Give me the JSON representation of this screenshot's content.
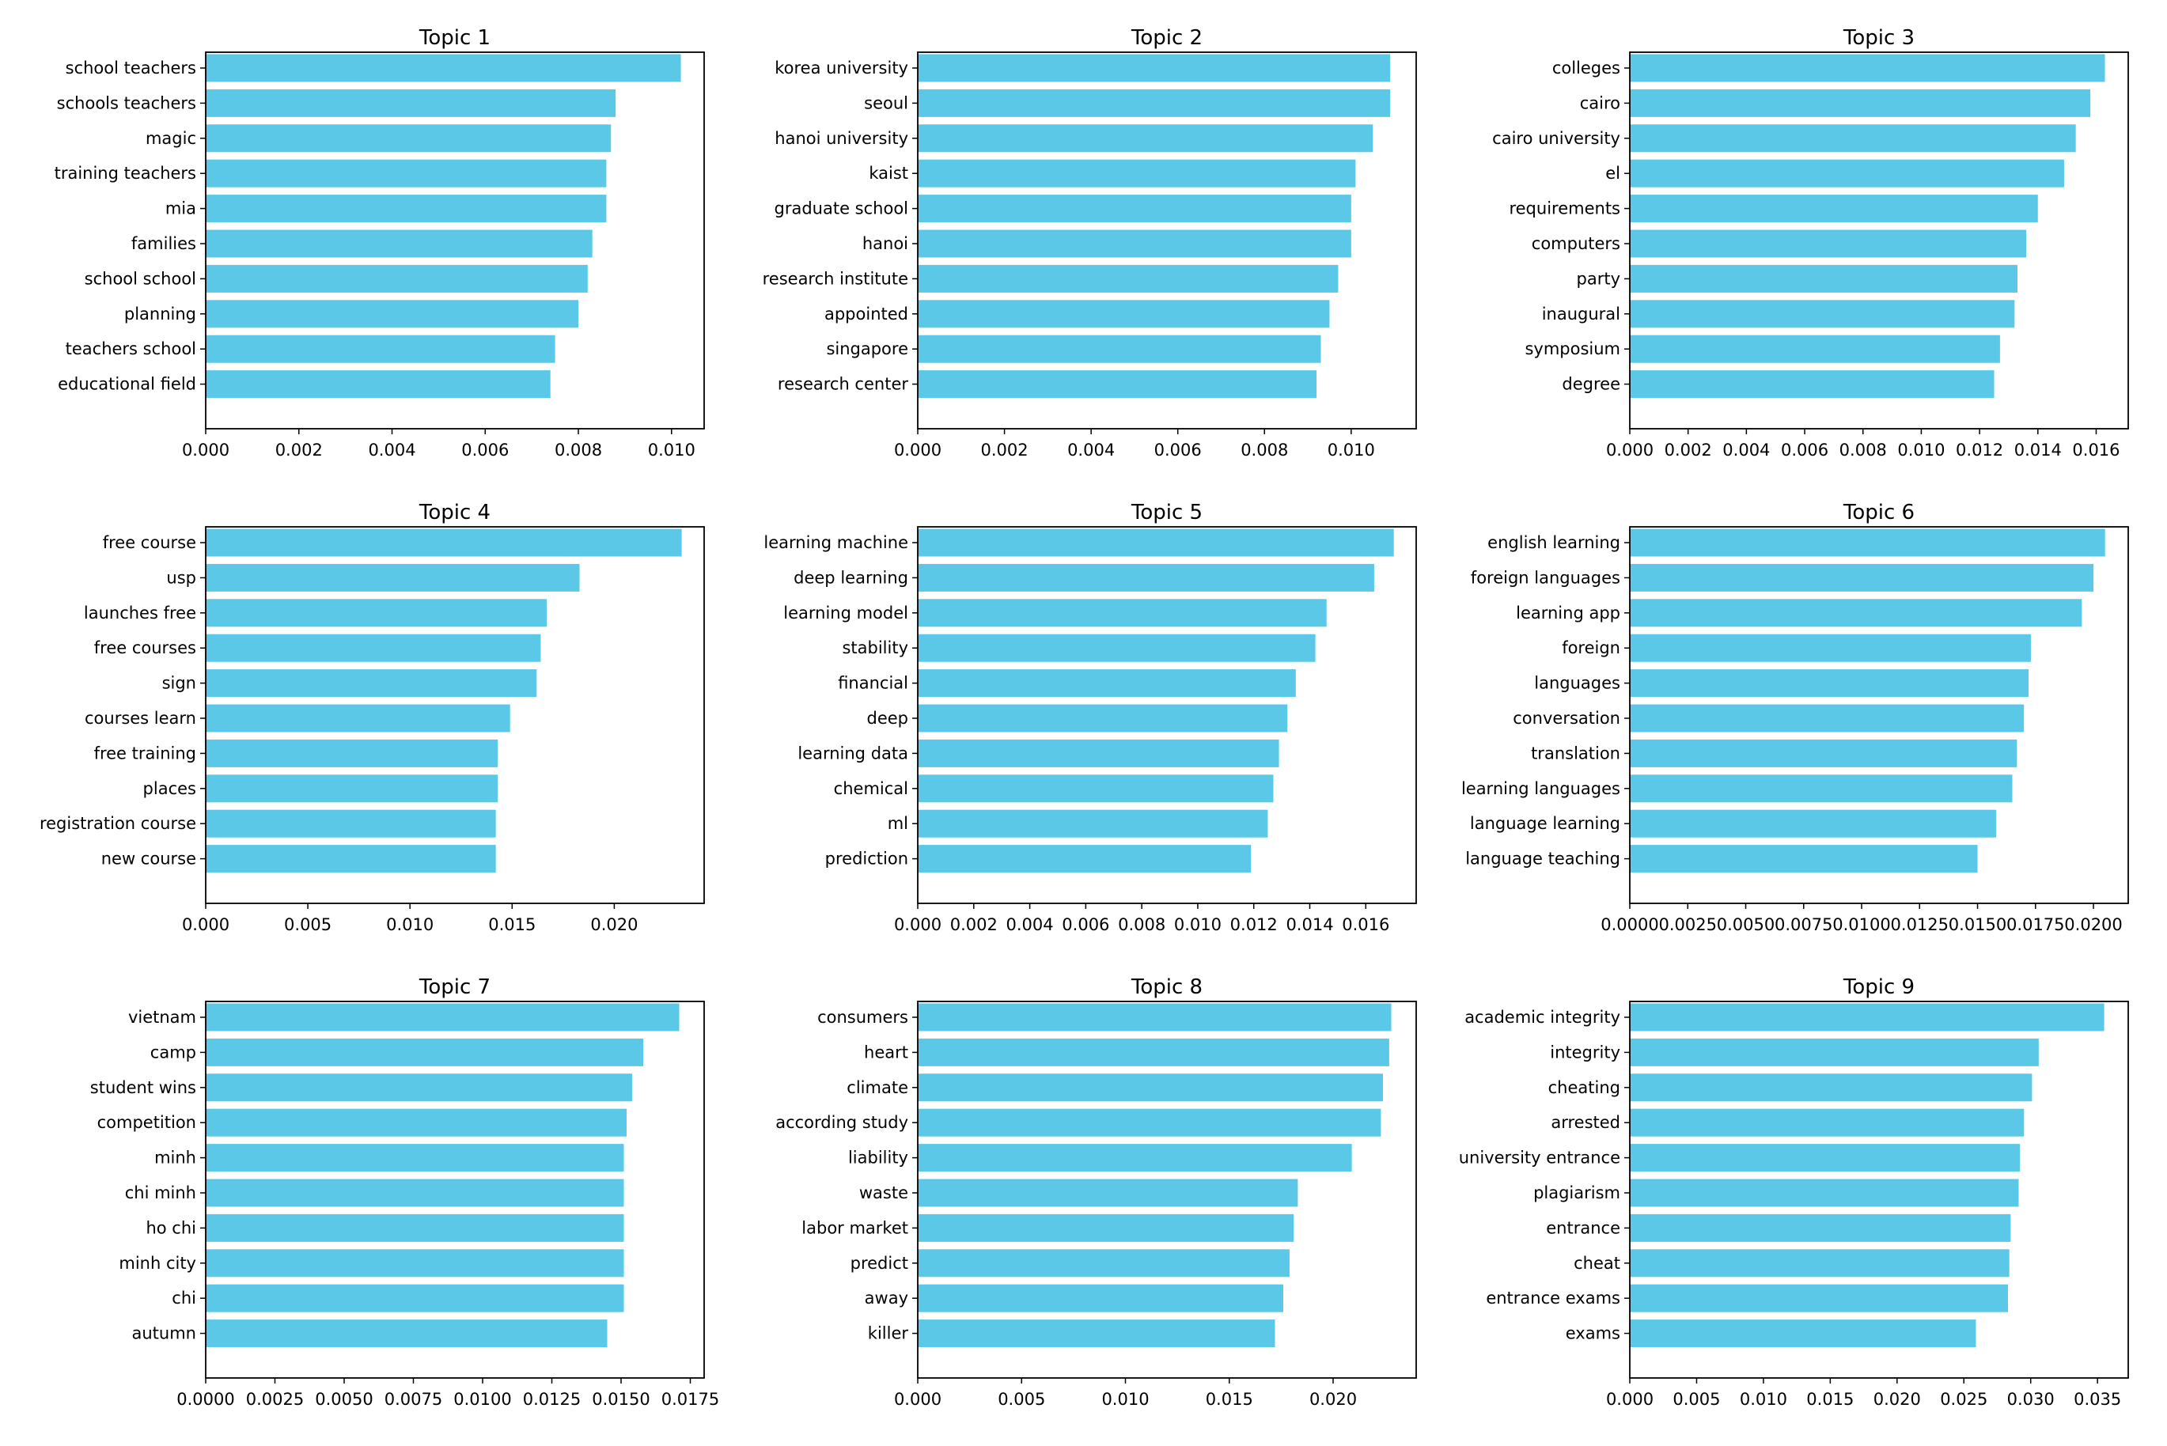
{
  "figure": {
    "bar_color": "#5bc8e8",
    "frame_color": "#000000"
  },
  "chart_data": [
    {
      "type": "bar",
      "orientation": "horizontal",
      "title": "Topic 1",
      "categories": [
        "school teachers",
        "schools teachers",
        "magic",
        "training teachers",
        "mia",
        "families",
        "school school",
        "planning",
        "teachers school",
        "educational field"
      ],
      "values": [
        0.0102,
        0.0088,
        0.0087,
        0.0086,
        0.0086,
        0.0083,
        0.0082,
        0.008,
        0.0075,
        0.0074
      ],
      "xlim": [
        0,
        0.0107
      ],
      "xticks": [
        0,
        0.002,
        0.004,
        0.006,
        0.008,
        0.01
      ],
      "xtick_labels": [
        "0.000",
        "0.002",
        "0.004",
        "0.006",
        "0.008",
        "0.010"
      ],
      "grid": false
    },
    {
      "type": "bar",
      "orientation": "horizontal",
      "title": "Topic 2",
      "categories": [
        "korea university",
        "seoul",
        "hanoi university",
        "kaist",
        "graduate school",
        "hanoi",
        "research institute",
        "appointed",
        "singapore",
        "research center"
      ],
      "values": [
        0.0109,
        0.0109,
        0.0105,
        0.0101,
        0.01,
        0.01,
        0.0097,
        0.0095,
        0.0093,
        0.0092
      ],
      "xlim": [
        0,
        0.0115
      ],
      "xticks": [
        0,
        0.002,
        0.004,
        0.006,
        0.008,
        0.01
      ],
      "xtick_labels": [
        "0.000",
        "0.002",
        "0.004",
        "0.006",
        "0.008",
        "0.010"
      ],
      "grid": false
    },
    {
      "type": "bar",
      "orientation": "horizontal",
      "title": "Topic 3",
      "categories": [
        "colleges",
        "cairo",
        "cairo university",
        "el",
        "requirements",
        "computers",
        "party",
        "inaugural",
        "symposium",
        "degree"
      ],
      "values": [
        0.0163,
        0.0158,
        0.0153,
        0.0149,
        0.014,
        0.0136,
        0.0133,
        0.0132,
        0.0127,
        0.0125
      ],
      "xlim": [
        0,
        0.0171
      ],
      "xticks": [
        0,
        0.002,
        0.004,
        0.006,
        0.008,
        0.01,
        0.012,
        0.014,
        0.016
      ],
      "xtick_labels": [
        "0.000",
        "0.002",
        "0.004",
        "0.006",
        "0.008",
        "0.010",
        "0.012",
        "0.014",
        "0.016"
      ],
      "grid": false
    },
    {
      "type": "bar",
      "orientation": "horizontal",
      "title": "Topic 4",
      "categories": [
        "free course",
        "usp",
        "launches free",
        "free courses",
        "sign",
        "courses learn",
        "free training",
        "places",
        "registration course",
        "new course"
      ],
      "values": [
        0.0233,
        0.0183,
        0.0167,
        0.0164,
        0.0162,
        0.0149,
        0.0143,
        0.0143,
        0.0142,
        0.0142
      ],
      "xlim": [
        0,
        0.0244
      ],
      "xticks": [
        0,
        0.005,
        0.01,
        0.015,
        0.02
      ],
      "xtick_labels": [
        "0.000",
        "0.005",
        "0.010",
        "0.015",
        "0.020"
      ],
      "grid": false
    },
    {
      "type": "bar",
      "orientation": "horizontal",
      "title": "Topic 5",
      "categories": [
        "learning machine",
        "deep learning",
        "learning model",
        "stability",
        "financial",
        "deep",
        "learning data",
        "chemical",
        "ml",
        "prediction"
      ],
      "values": [
        0.017,
        0.0163,
        0.0146,
        0.0142,
        0.0135,
        0.0132,
        0.0129,
        0.0127,
        0.0125,
        0.0119
      ],
      "xlim": [
        0,
        0.0178
      ],
      "xticks": [
        0,
        0.002,
        0.004,
        0.006,
        0.008,
        0.01,
        0.012,
        0.014,
        0.016
      ],
      "xtick_labels": [
        "0.000",
        "0.002",
        "0.004",
        "0.006",
        "0.008",
        "0.010",
        "0.012",
        "0.014",
        "0.016"
      ],
      "grid": false
    },
    {
      "type": "bar",
      "orientation": "horizontal",
      "title": "Topic 6",
      "categories": [
        "english learning",
        "foreign languages",
        "learning app",
        "foreign",
        "languages",
        "conversation",
        "translation",
        "learning languages",
        "language learning",
        "language teaching"
      ],
      "values": [
        0.0205,
        0.02,
        0.0195,
        0.0173,
        0.0172,
        0.017,
        0.0167,
        0.0165,
        0.0158,
        0.015
      ],
      "xlim": [
        0,
        0.0215
      ],
      "xticks": [
        0,
        0.0025,
        0.005,
        0.0075,
        0.01,
        0.0125,
        0.015,
        0.0175,
        0.02
      ],
      "xtick_labels": [
        "0.0000",
        "0.0025",
        "0.0050",
        "0.0075",
        "0.0100",
        "0.0125",
        "0.0150",
        "0.0175",
        "0.0200"
      ],
      "grid": false
    },
    {
      "type": "bar",
      "orientation": "horizontal",
      "title": "Topic 7",
      "categories": [
        "vietnam",
        "camp",
        "student wins",
        "competition",
        "minh",
        "chi minh",
        "ho chi",
        "minh city",
        "chi",
        "autumn"
      ],
      "values": [
        0.0171,
        0.0158,
        0.0154,
        0.0152,
        0.0151,
        0.0151,
        0.0151,
        0.0151,
        0.0151,
        0.0145
      ],
      "xlim": [
        0,
        0.018
      ],
      "xticks": [
        0,
        0.0025,
        0.005,
        0.0075,
        0.01,
        0.0125,
        0.015,
        0.0175
      ],
      "xtick_labels": [
        "0.0000",
        "0.0025",
        "0.0050",
        "0.0075",
        "0.0100",
        "0.0125",
        "0.0150",
        "0.0175"
      ],
      "grid": false
    },
    {
      "type": "bar",
      "orientation": "horizontal",
      "title": "Topic 8",
      "categories": [
        "consumers",
        "heart",
        "climate",
        "according study",
        "liability",
        "waste",
        "labor market",
        "predict",
        "away",
        "killer"
      ],
      "values": [
        0.0228,
        0.0227,
        0.0224,
        0.0223,
        0.0209,
        0.0183,
        0.0181,
        0.0179,
        0.0176,
        0.0172
      ],
      "xlim": [
        0,
        0.024
      ],
      "xticks": [
        0,
        0.005,
        0.01,
        0.015,
        0.02
      ],
      "xtick_labels": [
        "0.000",
        "0.005",
        "0.010",
        "0.015",
        "0.020"
      ],
      "grid": false
    },
    {
      "type": "bar",
      "orientation": "horizontal",
      "title": "Topic 9",
      "categories": [
        "academic integrity",
        "integrity",
        "cheating",
        "arrested",
        "university entrance",
        "plagiarism",
        "entrance",
        "cheat",
        "entrance exams",
        "exams"
      ],
      "values": [
        0.0355,
        0.0306,
        0.0301,
        0.0295,
        0.0292,
        0.0291,
        0.0285,
        0.0284,
        0.0283,
        0.0259
      ],
      "xlim": [
        0,
        0.0373
      ],
      "xticks": [
        0,
        0.005,
        0.01,
        0.015,
        0.02,
        0.025,
        0.03,
        0.035
      ],
      "xtick_labels": [
        "0.000",
        "0.005",
        "0.010",
        "0.015",
        "0.020",
        "0.025",
        "0.030",
        "0.035"
      ],
      "grid": false
    }
  ]
}
